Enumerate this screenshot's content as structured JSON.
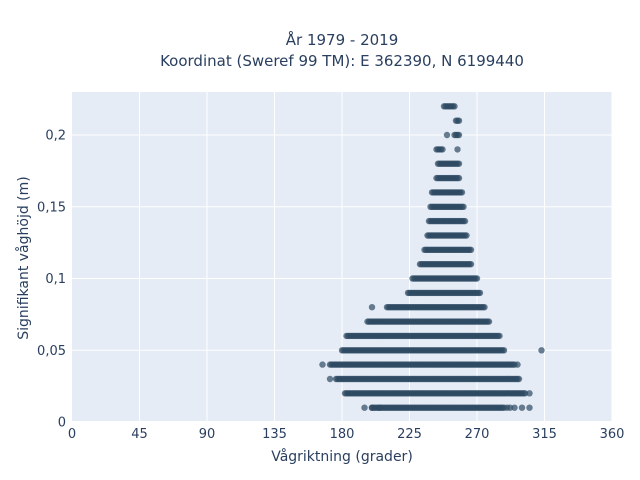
{
  "chart_data": {
    "type": "scatter",
    "title_line1": "År 1979 - 2019",
    "title_line2": "Koordinat (Sweref 99 TM): E 362390, N 6199440",
    "xlabel": "Vågriktning (grader)",
    "ylabel": "Signifikant våghöjd (m)",
    "xlim": [
      0,
      360
    ],
    "ylim": [
      0,
      0.23
    ],
    "xticks": [
      0,
      45,
      90,
      135,
      180,
      225,
      270,
      315,
      360
    ],
    "xtick_labels": [
      "0",
      "45",
      "90",
      "135",
      "180",
      "225",
      "270",
      "315",
      "360"
    ],
    "yticks": [
      0,
      0.05,
      0.1,
      0.15,
      0.2
    ],
    "ytick_labels": [
      "0",
      "0,05",
      "0,1",
      "0,15",
      "0,2"
    ],
    "grid": true,
    "plot_background": "#e5ecf6",
    "marker_color": "#2e4a62",
    "marker_opacity": 0.7,
    "rows": [
      {
        "y": 0.01,
        "x_min": 200,
        "x_max": 288,
        "outliers": [
          195,
          200,
          205,
          290,
          292,
          295,
          300,
          305
        ]
      },
      {
        "y": 0.02,
        "x_min": 182,
        "x_max": 302,
        "outliers": [
          305
        ]
      },
      {
        "y": 0.03,
        "x_min": 176,
        "x_max": 298,
        "outliers": [
          172
        ]
      },
      {
        "y": 0.04,
        "x_min": 172,
        "x_max": 295,
        "outliers": [
          167,
          297
        ]
      },
      {
        "y": 0.05,
        "x_min": 180,
        "x_max": 288,
        "outliers": [
          313
        ]
      },
      {
        "y": 0.06,
        "x_min": 183,
        "x_max": 285,
        "outliers": []
      },
      {
        "y": 0.07,
        "x_min": 197,
        "x_max": 278,
        "outliers": []
      },
      {
        "y": 0.08,
        "x_min": 210,
        "x_max": 275,
        "outliers": [
          200
        ]
      },
      {
        "y": 0.09,
        "x_min": 224,
        "x_max": 272,
        "outliers": []
      },
      {
        "y": 0.1,
        "x_min": 227,
        "x_max": 270,
        "outliers": []
      },
      {
        "y": 0.11,
        "x_min": 232,
        "x_max": 266,
        "outliers": []
      },
      {
        "y": 0.12,
        "x_min": 235,
        "x_max": 266,
        "outliers": []
      },
      {
        "y": 0.13,
        "x_min": 237,
        "x_max": 263,
        "outliers": []
      },
      {
        "y": 0.14,
        "x_min": 238,
        "x_max": 262,
        "outliers": []
      },
      {
        "y": 0.15,
        "x_min": 239,
        "x_max": 261,
        "outliers": []
      },
      {
        "y": 0.16,
        "x_min": 240,
        "x_max": 260,
        "outliers": []
      },
      {
        "y": 0.17,
        "x_min": 243,
        "x_max": 258,
        "outliers": []
      },
      {
        "y": 0.18,
        "x_min": 245,
        "x_max": 258,
        "outliers": [
          244
        ]
      },
      {
        "y": 0.19,
        "x_min": 243,
        "x_max": 247,
        "outliers": [
          257
        ]
      },
      {
        "y": 0.2,
        "x_min": 255,
        "x_max": 258,
        "outliers": [
          250
        ]
      },
      {
        "y": 0.21,
        "x_min": 256,
        "x_max": 258,
        "outliers": []
      },
      {
        "y": 0.22,
        "x_min": 248,
        "x_max": 255,
        "outliers": []
      }
    ]
  }
}
